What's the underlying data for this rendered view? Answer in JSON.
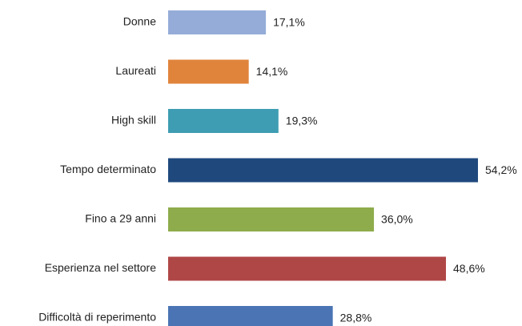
{
  "chart_data": {
    "type": "barh",
    "categories": [
      "Donne",
      "Laureati",
      "High skill",
      "Tempo determinato",
      "Fino a 29 anni",
      "Esperienza nel settore",
      "Difficoltà di reperimento"
    ],
    "values": [
      17.1,
      14.1,
      19.3,
      54.2,
      36.0,
      48.6,
      28.8
    ],
    "value_labels": [
      "17,1%",
      "14,1%",
      "19,3%",
      "54,2%",
      "36,0%",
      "48,6%",
      "28,8%"
    ],
    "colors": [
      "#95acd8",
      "#e0843c",
      "#3e9db2",
      "#1f497d",
      "#8eac4b",
      "#b04747",
      "#4a74b4"
    ]
  }
}
